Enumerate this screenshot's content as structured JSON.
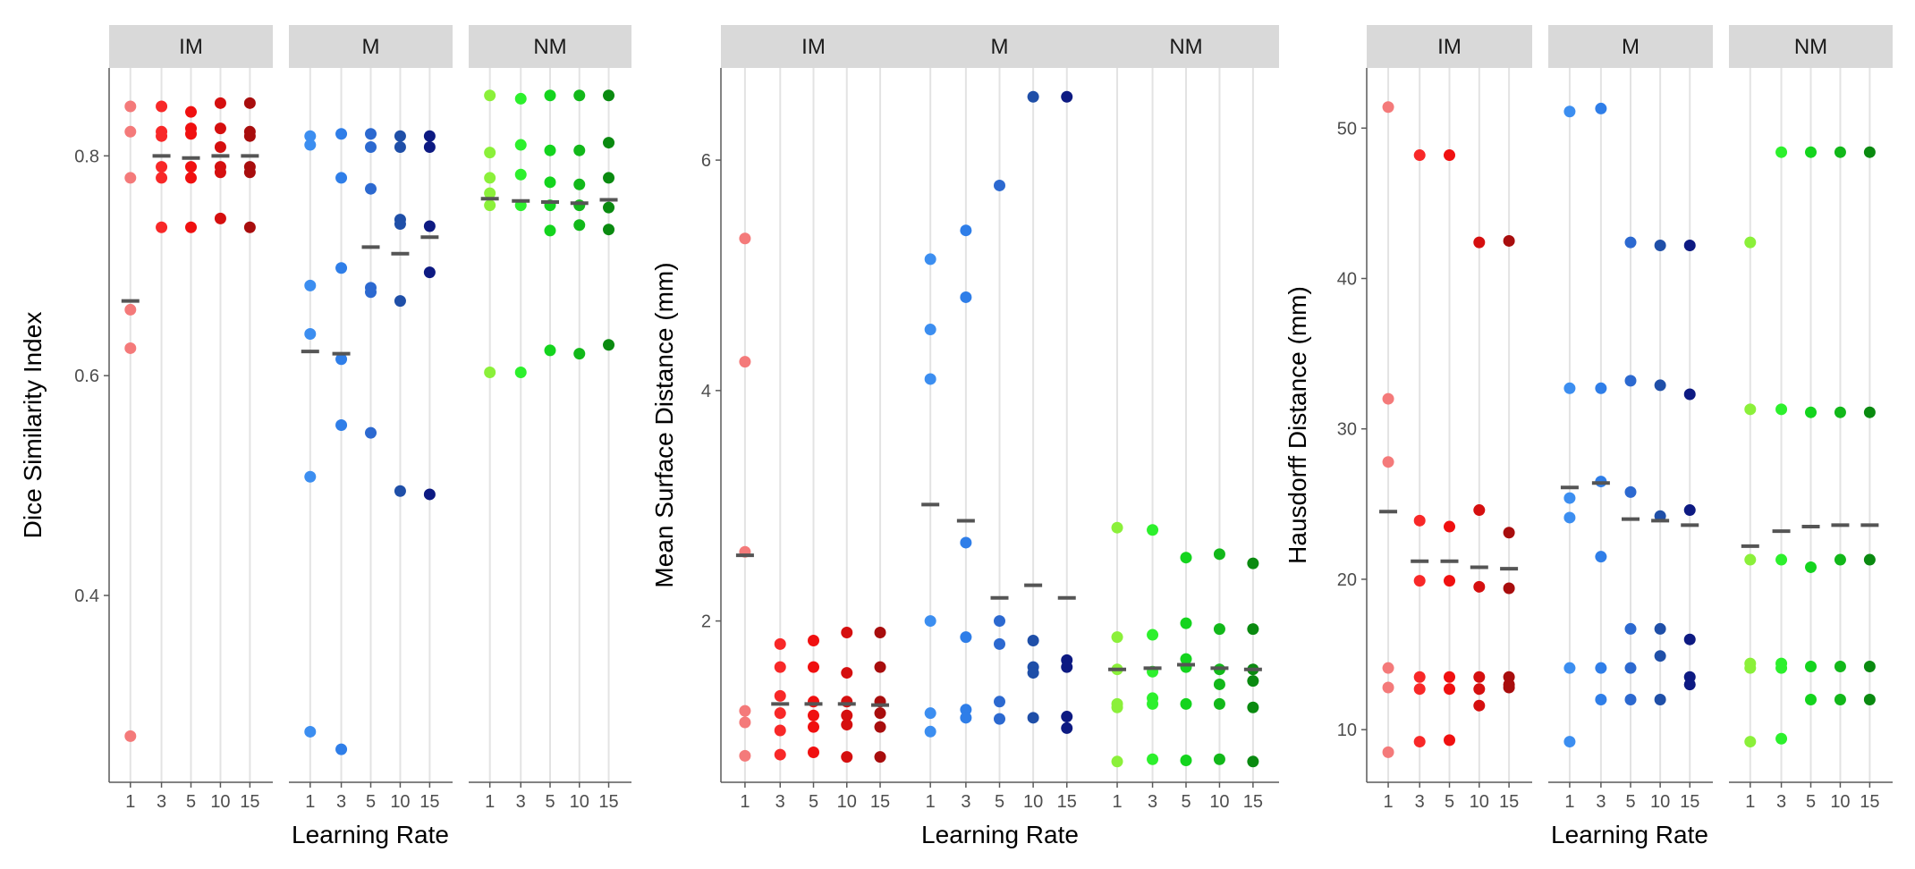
{
  "chart_data": [
    {
      "type": "scatter",
      "ylabel": "Dice Similarity Index",
      "xlabel": "Learning Rate",
      "ylim": [
        0.23,
        0.88
      ],
      "yticks": [
        "0.4",
        "0.6",
        "0.8"
      ],
      "ytick_values": [
        0.4,
        0.6,
        0.8
      ],
      "x_tick_labels": [
        "1",
        "3",
        "5",
        "10",
        "15"
      ],
      "facets": [
        {
          "label": "IM",
          "colors": [
            "#F47A7A",
            "#F82828",
            "#F01010",
            "#D50F0F",
            "#A80D0D"
          ],
          "points": [
            [
              0.845,
              0.822,
              0.78,
              0.66,
              0.625,
              0.272
            ],
            [
              0.845,
              0.822,
              0.818,
              0.79,
              0.78,
              0.735
            ],
            [
              0.84,
              0.825,
              0.82,
              0.79,
              0.78,
              0.735
            ],
            [
              0.848,
              0.825,
              0.808,
              0.79,
              0.785,
              0.743
            ],
            [
              0.848,
              0.822,
              0.818,
              0.79,
              0.785,
              0.735
            ]
          ],
          "means": [
            0.668,
            0.8,
            0.798,
            0.8,
            0.8
          ]
        },
        {
          "label": "M",
          "colors": [
            "#3C8EF0",
            "#2F7EE8",
            "#2C69D0",
            "#1F4FA8",
            "#0D1A82"
          ],
          "points": [
            [
              0.818,
              0.81,
              0.682,
              0.638,
              0.508,
              0.276
            ],
            [
              0.82,
              0.78,
              0.698,
              0.615,
              0.555,
              0.26
            ],
            [
              0.82,
              0.808,
              0.77,
              0.68,
              0.676,
              0.548
            ],
            [
              0.818,
              0.808,
              0.742,
              0.738,
              0.668,
              0.495
            ],
            [
              0.818,
              0.808,
              0.736,
              0.694,
              0.492
            ]
          ],
          "means": [
            0.622,
            0.62,
            0.717,
            0.711,
            0.726
          ]
        },
        {
          "label": "NM",
          "colors": [
            "#8BF03A",
            "#2DF02D",
            "#14D41E",
            "#12B81A",
            "#0A8A10"
          ],
          "points": [
            [
              0.855,
              0.803,
              0.78,
              0.766,
              0.755,
              0.603
            ],
            [
              0.852,
              0.81,
              0.783,
              0.755,
              0.603
            ],
            [
              0.855,
              0.805,
              0.776,
              0.755,
              0.732,
              0.623
            ],
            [
              0.855,
              0.805,
              0.774,
              0.755,
              0.737,
              0.62
            ],
            [
              0.855,
              0.812,
              0.78,
              0.753,
              0.733,
              0.628
            ]
          ],
          "means": [
            0.761,
            0.759,
            0.758,
            0.757,
            0.76
          ]
        }
      ]
    },
    {
      "type": "scatter",
      "ylabel": "Mean Surface Distance (mm)",
      "xlabel": "Learning Rate",
      "ylim": [
        0.6,
        6.8
      ],
      "yticks": [
        "2",
        "4",
        "6"
      ],
      "ytick_values": [
        2,
        4,
        6
      ],
      "x_tick_labels": [
        "1",
        "3",
        "5",
        "10",
        "15"
      ],
      "facets": [
        {
          "label": "IM",
          "colors": [
            "#F47A7A",
            "#F82828",
            "#F01010",
            "#D50F0F",
            "#A80D0D"
          ],
          "points": [
            [
              5.32,
              4.25,
              2.6,
              1.22,
              1.12,
              0.83
            ],
            [
              1.8,
              1.6,
              1.35,
              1.2,
              1.05,
              0.84
            ],
            [
              1.83,
              1.6,
              1.3,
              1.18,
              1.08,
              0.86
            ],
            [
              1.9,
              1.55,
              1.3,
              1.18,
              1.1,
              0.82
            ],
            [
              1.9,
              1.6,
              1.3,
              1.2,
              1.08,
              0.82
            ]
          ],
          "means": [
            2.57,
            1.28,
            1.28,
            1.28,
            1.27
          ]
        },
        {
          "label": "M",
          "colors": [
            "#3C8EF0",
            "#2F7EE8",
            "#2C69D0",
            "#1F4FA8",
            "#0D1A82"
          ],
          "points": [
            [
              5.14,
              4.53,
              4.1,
              2.0,
              1.2,
              1.04
            ],
            [
              5.39,
              4.81,
              2.68,
              1.86,
              1.23,
              1.16
            ],
            [
              5.78,
              2.0,
              1.8,
              1.3,
              1.15
            ],
            [
              6.55,
              1.83,
              1.6,
              1.55,
              1.16
            ],
            [
              6.55,
              1.66,
              1.6,
              1.17,
              1.07
            ]
          ],
          "means": [
            3.01,
            2.87,
            2.2,
            2.31,
            2.2
          ]
        },
        {
          "label": "NM",
          "colors": [
            "#8BF03A",
            "#2DF02D",
            "#14D41E",
            "#12B81A",
            "#0A8A10"
          ],
          "points": [
            [
              2.81,
              1.86,
              1.58,
              1.28,
              1.25,
              0.78
            ],
            [
              2.79,
              1.88,
              1.56,
              1.33,
              1.28,
              0.8
            ],
            [
              2.55,
              1.98,
              1.67,
              1.6,
              1.28,
              0.79
            ],
            [
              2.58,
              1.93,
              1.58,
              1.45,
              1.28,
              0.8
            ],
            [
              2.5,
              1.93,
              1.58,
              1.48,
              1.25,
              0.78
            ]
          ],
          "means": [
            1.58,
            1.59,
            1.62,
            1.59,
            1.58
          ]
        }
      ]
    },
    {
      "type": "scatter",
      "ylabel": "Hausdorff Distance (mm)",
      "xlabel": "Learning Rate",
      "ylim": [
        6.5,
        54
      ],
      "yticks": [
        "10",
        "20",
        "30",
        "40",
        "50"
      ],
      "ytick_values": [
        10,
        20,
        30,
        40,
        50
      ],
      "x_tick_labels": [
        "1",
        "3",
        "5",
        "10",
        "15"
      ],
      "facets": [
        {
          "label": "IM",
          "colors": [
            "#F47A7A",
            "#F82828",
            "#F01010",
            "#D50F0F",
            "#A80D0D"
          ],
          "points": [
            [
              51.4,
              32.0,
              27.8,
              14.1,
              12.8,
              8.5
            ],
            [
              48.2,
              23.9,
              19.9,
              13.5,
              12.7,
              9.2
            ],
            [
              48.2,
              23.5,
              19.9,
              13.5,
              12.7,
              9.3
            ],
            [
              42.4,
              24.6,
              19.5,
              13.5,
              12.7,
              11.6
            ],
            [
              42.5,
              23.1,
              19.4,
              13.5,
              13.0,
              12.8
            ]
          ],
          "means": [
            24.5,
            21.2,
            21.2,
            20.8,
            20.7
          ]
        },
        {
          "label": "M",
          "colors": [
            "#3C8EF0",
            "#2F7EE8",
            "#2C69D0",
            "#1F4FA8",
            "#0D1A82"
          ],
          "points": [
            [
              51.1,
              32.7,
              25.4,
              24.1,
              14.1,
              9.2
            ],
            [
              51.3,
              32.7,
              26.5,
              21.5,
              14.1,
              12.0
            ],
            [
              42.4,
              33.2,
              25.8,
              16.7,
              14.1,
              12.0
            ],
            [
              42.2,
              32.9,
              24.2,
              16.7,
              14.9,
              12.0
            ],
            [
              42.2,
              32.3,
              24.6,
              16.0,
              13.5,
              13.0
            ]
          ],
          "means": [
            26.1,
            26.4,
            24.0,
            23.9,
            23.6
          ]
        },
        {
          "label": "NM",
          "colors": [
            "#8BF03A",
            "#2DF02D",
            "#14D41E",
            "#12B81A",
            "#0A8A10"
          ],
          "points": [
            [
              42.4,
              31.3,
              21.3,
              14.4,
              14.1,
              9.2
            ],
            [
              48.4,
              31.3,
              21.3,
              14.4,
              14.1,
              9.4
            ],
            [
              48.4,
              31.1,
              20.8,
              14.2,
              12.0
            ],
            [
              48.4,
              31.1,
              21.3,
              14.2,
              12.0
            ],
            [
              48.4,
              31.1,
              21.3,
              14.2,
              12.0
            ]
          ],
          "means": [
            22.2,
            23.2,
            23.5,
            23.6,
            23.6
          ]
        }
      ]
    }
  ]
}
